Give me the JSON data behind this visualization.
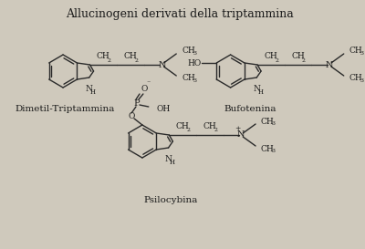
{
  "title": "Allucinogeni derivati della triptammina",
  "title_fontsize": 9,
  "label_dmt": "Dimetil-Triptammina",
  "label_buf": "Bufotenina",
  "label_psi": "Psilocybina",
  "bg_color": "#cfc9bc",
  "line_color": "#2a2a2a",
  "text_color": "#1a1a1a",
  "fig_width": 4.0,
  "fig_height": 2.73,
  "dpi": 100
}
